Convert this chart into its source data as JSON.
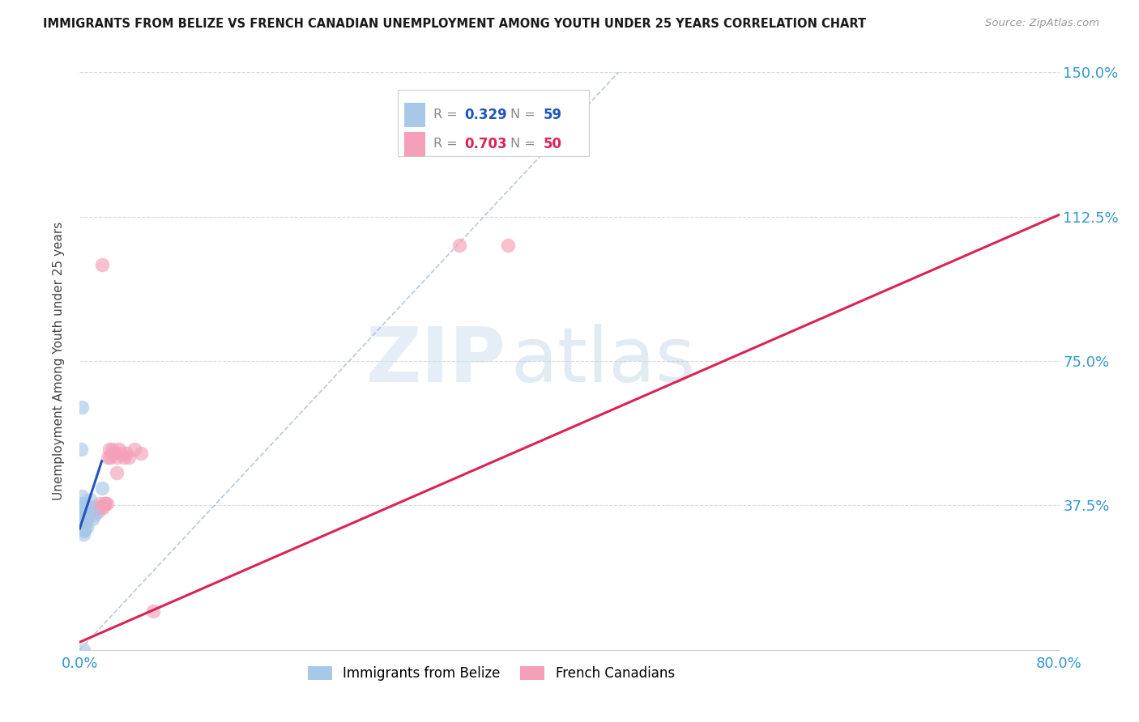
{
  "title": "IMMIGRANTS FROM BELIZE VS FRENCH CANADIAN UNEMPLOYMENT AMONG YOUTH UNDER 25 YEARS CORRELATION CHART",
  "source": "Source: ZipAtlas.com",
  "ylabel": "Unemployment Among Youth under 25 years",
  "x_min": 0.0,
  "x_max": 0.8,
  "y_min": 0.0,
  "y_max": 1.5,
  "x_ticks": [
    0.0,
    0.1,
    0.2,
    0.3,
    0.4,
    0.5,
    0.6,
    0.7,
    0.8
  ],
  "x_tick_labels": [
    "0.0%",
    "",
    "",
    "",
    "",
    "",
    "",
    "",
    "80.0%"
  ],
  "y_ticks": [
    0.0,
    0.375,
    0.75,
    1.125,
    1.5
  ],
  "y_tick_labels": [
    "",
    "37.5%",
    "75.0%",
    "112.5%",
    "150.0%"
  ],
  "grid_color": "#d0d0d0",
  "background_color": "#ffffff",
  "blue_color": "#a8c8e8",
  "pink_color": "#f4a0b8",
  "blue_line_color": "#2255bb",
  "pink_line_color": "#dd2255",
  "dashed_line_color": "#b0c4d8",
  "watermark_zip": "ZIP",
  "watermark_atlas": "atlas",
  "blue_scatter_x": [
    0.001,
    0.002,
    0.002,
    0.003,
    0.003,
    0.003,
    0.003,
    0.003,
    0.003,
    0.003,
    0.003,
    0.003,
    0.003,
    0.003,
    0.003,
    0.003,
    0.003,
    0.003,
    0.003,
    0.003,
    0.003,
    0.003,
    0.003,
    0.003,
    0.003,
    0.003,
    0.003,
    0.003,
    0.003,
    0.003,
    0.004,
    0.004,
    0.004,
    0.004,
    0.004,
    0.004,
    0.004,
    0.004,
    0.004,
    0.004,
    0.005,
    0.005,
    0.005,
    0.006,
    0.006,
    0.006,
    0.007,
    0.008,
    0.01,
    0.012,
    0.002,
    0.002,
    0.003,
    0.004,
    0.003,
    0.003,
    0.003,
    0.018,
    0.003
  ],
  "blue_scatter_y": [
    0.52,
    0.63,
    0.35,
    0.37,
    0.36,
    0.35,
    0.34,
    0.33,
    0.35,
    0.32,
    0.34,
    0.36,
    0.33,
    0.35,
    0.32,
    0.38,
    0.36,
    0.34,
    0.33,
    0.35,
    0.37,
    0.33,
    0.36,
    0.34,
    0.33,
    0.35,
    0.34,
    0.36,
    0.33,
    0.31,
    0.34,
    0.37,
    0.33,
    0.35,
    0.34,
    0.32,
    0.35,
    0.37,
    0.33,
    0.31,
    0.34,
    0.36,
    0.33,
    0.35,
    0.34,
    0.32,
    0.37,
    0.39,
    0.34,
    0.35,
    0.4,
    0.38,
    0.3,
    0.31,
    0.33,
    0.34,
    0.35,
    0.42,
    0.0
  ],
  "pink_scatter_x": [
    0.002,
    0.003,
    0.003,
    0.004,
    0.004,
    0.004,
    0.005,
    0.005,
    0.005,
    0.006,
    0.006,
    0.007,
    0.007,
    0.008,
    0.008,
    0.009,
    0.009,
    0.01,
    0.01,
    0.011,
    0.012,
    0.012,
    0.013,
    0.014,
    0.015,
    0.016,
    0.017,
    0.018,
    0.019,
    0.02,
    0.021,
    0.022,
    0.023,
    0.024,
    0.025,
    0.026,
    0.027,
    0.028,
    0.03,
    0.032,
    0.034,
    0.036,
    0.038,
    0.04,
    0.045,
    0.05,
    0.06,
    0.31,
    0.35,
    0.03
  ],
  "pink_scatter_y": [
    0.35,
    0.34,
    0.36,
    0.33,
    0.35,
    0.34,
    0.36,
    0.35,
    0.37,
    0.34,
    0.36,
    0.35,
    0.37,
    0.36,
    0.36,
    0.37,
    0.37,
    0.36,
    0.37,
    0.36,
    0.37,
    0.36,
    0.37,
    0.37,
    0.36,
    0.38,
    0.37,
    1.0,
    0.37,
    0.38,
    0.38,
    0.38,
    0.5,
    0.52,
    0.5,
    0.51,
    0.52,
    0.51,
    0.5,
    0.52,
    0.51,
    0.5,
    0.51,
    0.5,
    0.52,
    0.51,
    0.1,
    1.05,
    1.05,
    0.46
  ],
  "blue_trendline_x": [
    0.0,
    0.018
  ],
  "blue_trendline_y": [
    0.315,
    0.49
  ],
  "pink_trendline_x": [
    0.0,
    0.8
  ],
  "pink_trendline_y": [
    0.02,
    1.13
  ],
  "dashed_line_x": [
    0.0,
    0.44
  ],
  "dashed_line_y": [
    0.0,
    1.5
  ]
}
